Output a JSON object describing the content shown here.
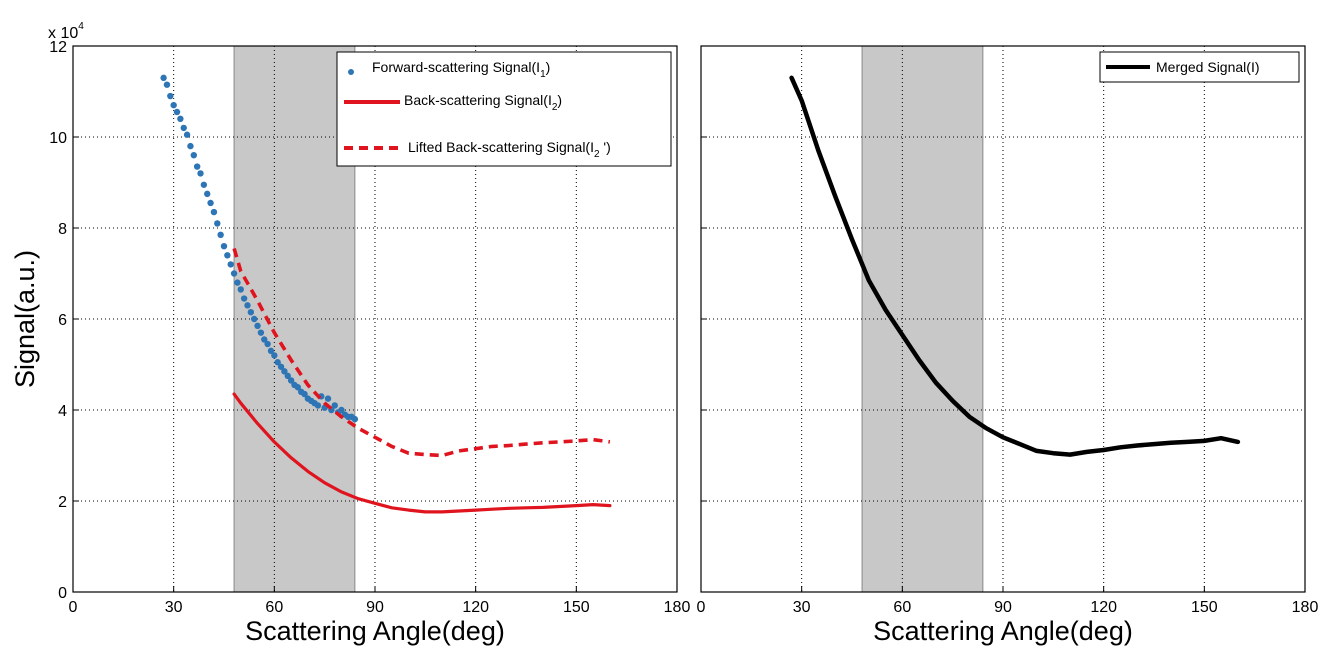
{
  "chart_data": [
    {
      "type": "line",
      "xlabel": "Scattering Angle(deg)",
      "ylabel": "Signal(a.u.)",
      "y_multiplier": "x 10",
      "y_multiplier_exp": "4",
      "xlim": [
        0,
        180
      ],
      "ylim": [
        0,
        12
      ],
      "xticks": [
        "0",
        "30",
        "60",
        "90",
        "120",
        "150",
        "180"
      ],
      "yticks": [
        "0",
        "2",
        "4",
        "6",
        "8",
        "10",
        "12"
      ],
      "grid": true,
      "legend_position": "top-right",
      "shaded_region": {
        "x": [
          48,
          84
        ],
        "color": "#c8c8c8"
      },
      "series": [
        {
          "name": "Forward-scattering Signal(I",
          "name_sub": "1",
          "name_suffix": ")",
          "style": "dots",
          "color": "#2e75b6",
          "x": [
            27,
            28,
            29,
            30,
            31,
            32,
            33,
            34,
            35,
            36,
            37,
            38,
            39,
            40,
            41,
            42,
            43,
            44,
            45,
            46,
            47,
            48,
            49,
            50,
            51,
            52,
            53,
            54,
            55,
            56,
            57,
            58,
            59,
            60,
            61,
            62,
            63,
            64,
            65,
            66,
            67,
            68,
            69,
            70,
            71,
            72,
            73,
            74,
            75,
            76,
            77,
            78,
            79,
            80,
            81,
            82,
            83,
            84
          ],
          "y": [
            11.3,
            11.15,
            10.9,
            10.7,
            10.55,
            10.4,
            10.2,
            10.05,
            9.8,
            9.6,
            9.35,
            9.2,
            8.95,
            8.75,
            8.55,
            8.35,
            8.1,
            7.85,
            7.6,
            7.4,
            7.2,
            7.0,
            6.8,
            6.65,
            6.45,
            6.3,
            6.15,
            6.0,
            5.85,
            5.7,
            5.55,
            5.45,
            5.3,
            5.2,
            5.05,
            4.95,
            4.85,
            4.75,
            4.65,
            4.55,
            4.5,
            4.4,
            4.35,
            4.25,
            4.2,
            4.15,
            4.1,
            4.3,
            4.05,
            4.25,
            4.0,
            4.1,
            3.95,
            4.0,
            3.9,
            3.85,
            3.85,
            3.8
          ]
        },
        {
          "name": "Back-scattering Signal(I",
          "name_sub": "2",
          "name_suffix": ")",
          "style": "solid",
          "color": "#e0141e",
          "x": [
            48,
            50,
            55,
            60,
            65,
            70,
            75,
            80,
            85,
            90,
            95,
            100,
            105,
            110,
            115,
            120,
            125,
            130,
            135,
            140,
            145,
            150,
            155,
            160
          ],
          "y": [
            4.35,
            4.15,
            3.7,
            3.3,
            2.95,
            2.65,
            2.4,
            2.2,
            2.05,
            1.95,
            1.85,
            1.8,
            1.76,
            1.76,
            1.78,
            1.8,
            1.82,
            1.84,
            1.85,
            1.86,
            1.88,
            1.9,
            1.92,
            1.9
          ]
        },
        {
          "name": "Lifted Back-scattering Signal(I",
          "name_sub": "2",
          "name_suffix": " ')",
          "style": "dashed",
          "color": "#e0141e",
          "x": [
            48,
            50,
            55,
            60,
            65,
            70,
            75,
            80,
            85,
            90,
            95,
            100,
            105,
            110,
            115,
            120,
            125,
            130,
            135,
            140,
            145,
            150,
            155,
            160
          ],
          "y": [
            7.55,
            7.05,
            6.4,
            5.7,
            5.1,
            4.55,
            4.15,
            3.85,
            3.6,
            3.4,
            3.2,
            3.05,
            3.02,
            3.0,
            3.1,
            3.15,
            3.2,
            3.22,
            3.25,
            3.28,
            3.3,
            3.32,
            3.35,
            3.3
          ]
        }
      ]
    },
    {
      "type": "line",
      "xlabel": "Scattering Angle(deg)",
      "xlim": [
        0,
        180
      ],
      "ylim": [
        0,
        12
      ],
      "xticks": [
        "0",
        "30",
        "60",
        "90",
        "120",
        "150",
        "180"
      ],
      "grid": true,
      "legend_position": "top-right",
      "shaded_region": {
        "x": [
          48,
          84
        ],
        "color": "#c8c8c8"
      },
      "series": [
        {
          "name": "Merged Signal(I)",
          "style": "thick-solid",
          "color": "#000000",
          "x": [
            27,
            30,
            35,
            40,
            45,
            50,
            55,
            60,
            65,
            70,
            75,
            80,
            85,
            90,
            95,
            100,
            105,
            110,
            115,
            120,
            125,
            130,
            135,
            140,
            145,
            150,
            155,
            160
          ],
          "y": [
            11.3,
            10.8,
            9.7,
            8.7,
            7.75,
            6.85,
            6.2,
            5.65,
            5.1,
            4.6,
            4.2,
            3.85,
            3.6,
            3.4,
            3.25,
            3.1,
            3.05,
            3.02,
            3.08,
            3.12,
            3.18,
            3.22,
            3.25,
            3.28,
            3.3,
            3.32,
            3.38,
            3.3
          ]
        }
      ]
    }
  ]
}
